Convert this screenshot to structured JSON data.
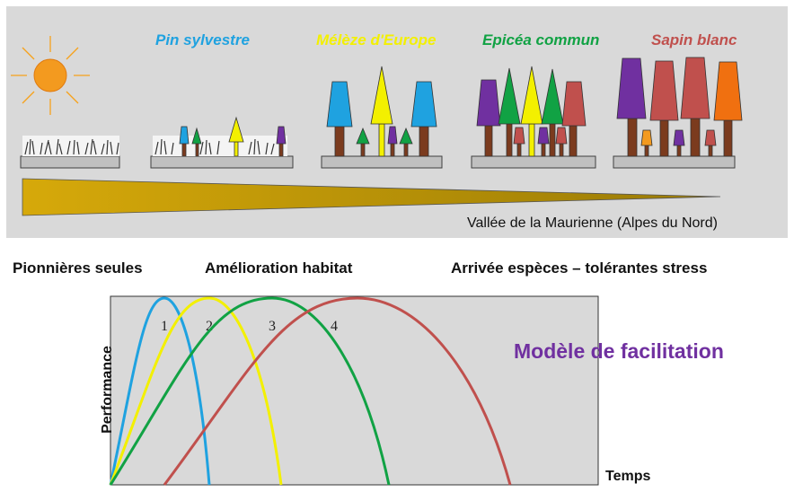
{
  "species": [
    {
      "label": "Pin sylvestre",
      "color": "#1fa2e0"
    },
    {
      "label": "Mélèze d'Europe",
      "color": "#f3f000"
    },
    {
      "label": "Epicéa commun",
      "color": "#11a244"
    },
    {
      "label": "Sapin blanc",
      "color": "#c0504d"
    }
  ],
  "extra_color": "#7030a0",
  "valley_label": "Vallée de la Maurienne  (Alpes du Nord)",
  "phases": {
    "pioneers": "Pionnières seules",
    "improvement_bold": "Amélioration",
    "improvement_rest": " habitat",
    "arrival": "Arrivée espèces  – tolérantes stress"
  },
  "model_title": "Modèle de facilitation",
  "chart_data": {
    "type": "line",
    "xlabel": "Temps",
    "ylabel": "Performance",
    "series": [
      {
        "name": "1",
        "color": "#1fa2e0",
        "x": [
          0,
          6,
          11
        ],
        "y": [
          0,
          1,
          0
        ]
      },
      {
        "name": "2",
        "color": "#f3f000",
        "x": [
          0,
          11,
          19
        ],
        "y": [
          0,
          1,
          0
        ]
      },
      {
        "name": "3",
        "color": "#11a244",
        "x": [
          0,
          18,
          31
        ],
        "y": [
          0,
          1,
          0
        ]
      },
      {
        "name": "4",
        "color": "#c0504d",
        "x": [
          6,
          27.5,
          44.5
        ],
        "y": [
          0,
          1,
          0
        ]
      }
    ]
  }
}
